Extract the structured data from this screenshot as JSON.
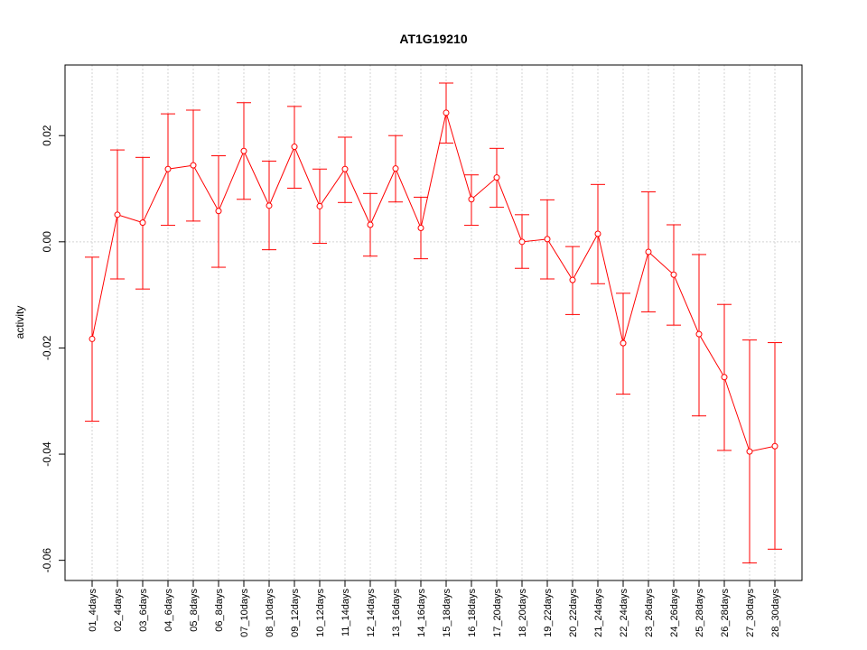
{
  "chart_data": {
    "type": "line",
    "title": "AT1G19210",
    "xlabel": "",
    "ylabel": "activity",
    "ylim": [
      -0.0638,
      0.0333
    ],
    "yticks": [
      -0.06,
      -0.04,
      -0.02,
      0.0,
      0.02
    ],
    "ytick_labels": [
      "-0.06",
      "-0.04",
      "-0.02",
      "0.00",
      "0.02"
    ],
    "grid": true,
    "series_color": "#ff0000",
    "categories": [
      "01_4days",
      "02_4days",
      "03_6days",
      "04_6days",
      "05_8days",
      "06_8days",
      "07_10days",
      "08_10days",
      "09_12days",
      "10_12days",
      "11_14days",
      "12_14days",
      "13_16days",
      "14_16days",
      "15_18days",
      "16_18days",
      "17_20days",
      "18_20days",
      "19_22days",
      "20_22days",
      "21_24days",
      "22_24days",
      "23_26days",
      "24_26days",
      "25_28days",
      "26_28days",
      "27_30days",
      "28_30days"
    ],
    "values": [
      -0.0183,
      0.0051,
      0.0036,
      0.0137,
      0.0144,
      0.0058,
      0.0171,
      0.0068,
      0.0179,
      0.0067,
      0.0137,
      0.0032,
      0.0138,
      0.0026,
      0.0243,
      0.008,
      0.0121,
      0.0,
      0.0005,
      -0.0072,
      0.0015,
      -0.0191,
      -0.0019,
      -0.0062,
      -0.0174,
      -0.0255,
      -0.0395,
      -0.0385
    ],
    "upper": [
      -0.0029,
      0.0173,
      0.0159,
      0.0241,
      0.0248,
      0.0162,
      0.0262,
      0.0152,
      0.0255,
      0.0137,
      0.0197,
      0.0091,
      0.02,
      0.0084,
      0.0299,
      0.0126,
      0.0176,
      0.0051,
      0.0079,
      -0.0009,
      0.0108,
      -0.0097,
      0.0094,
      0.0032,
      -0.0024,
      -0.0118,
      -0.0185,
      -0.019
    ],
    "lower": [
      -0.0338,
      -0.007,
      -0.0089,
      0.0031,
      0.0039,
      -0.0048,
      0.008,
      -0.0015,
      0.0101,
      -0.0003,
      0.0074,
      -0.0027,
      0.0075,
      -0.0032,
      0.0186,
      0.0031,
      0.0065,
      -0.005,
      -0.007,
      -0.0137,
      -0.0079,
      -0.0287,
      -0.0132,
      -0.0157,
      -0.0328,
      -0.0393,
      -0.0605,
      -0.0579
    ]
  }
}
